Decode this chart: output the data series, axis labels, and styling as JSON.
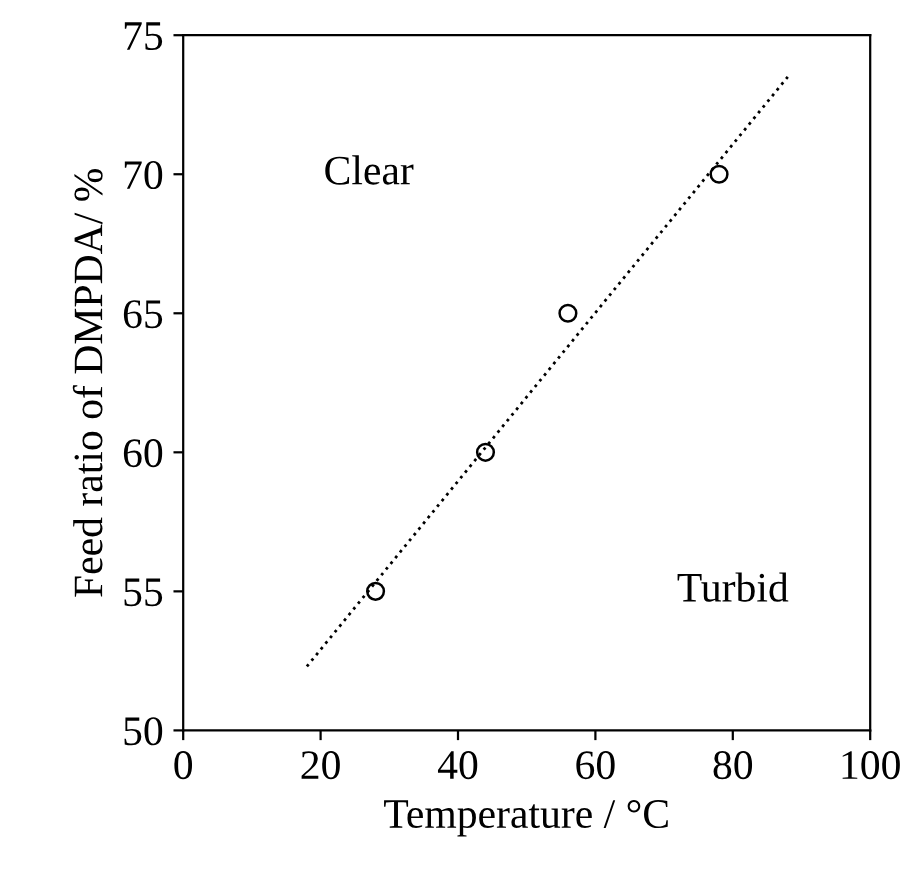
{
  "chart_data": {
    "type": "scatter",
    "xlabel": "Temperature / °C",
    "ylabel": "Feed ratio of DMPDA/ %",
    "xlim": [
      0,
      100
    ],
    "ylim": [
      50,
      75
    ],
    "xticks": [
      0,
      20,
      40,
      60,
      80,
      100
    ],
    "yticks": [
      50,
      55,
      60,
      65,
      70,
      75
    ],
    "grid": false,
    "legend": false,
    "series": [
      {
        "color": "#000000",
        "marker": "circle",
        "x": [
          28,
          44,
          56,
          78
        ],
        "values": [
          55,
          60,
          65,
          70
        ]
      },
      {
        "type": "line",
        "color": "#000000",
        "line_style": "dotted",
        "marker": "none",
        "x": [
          18,
          88
        ],
        "values": [
          52.3,
          73.5
        ]
      }
    ],
    "annotations": [
      "Clear",
      "Turbid"
    ]
  }
}
